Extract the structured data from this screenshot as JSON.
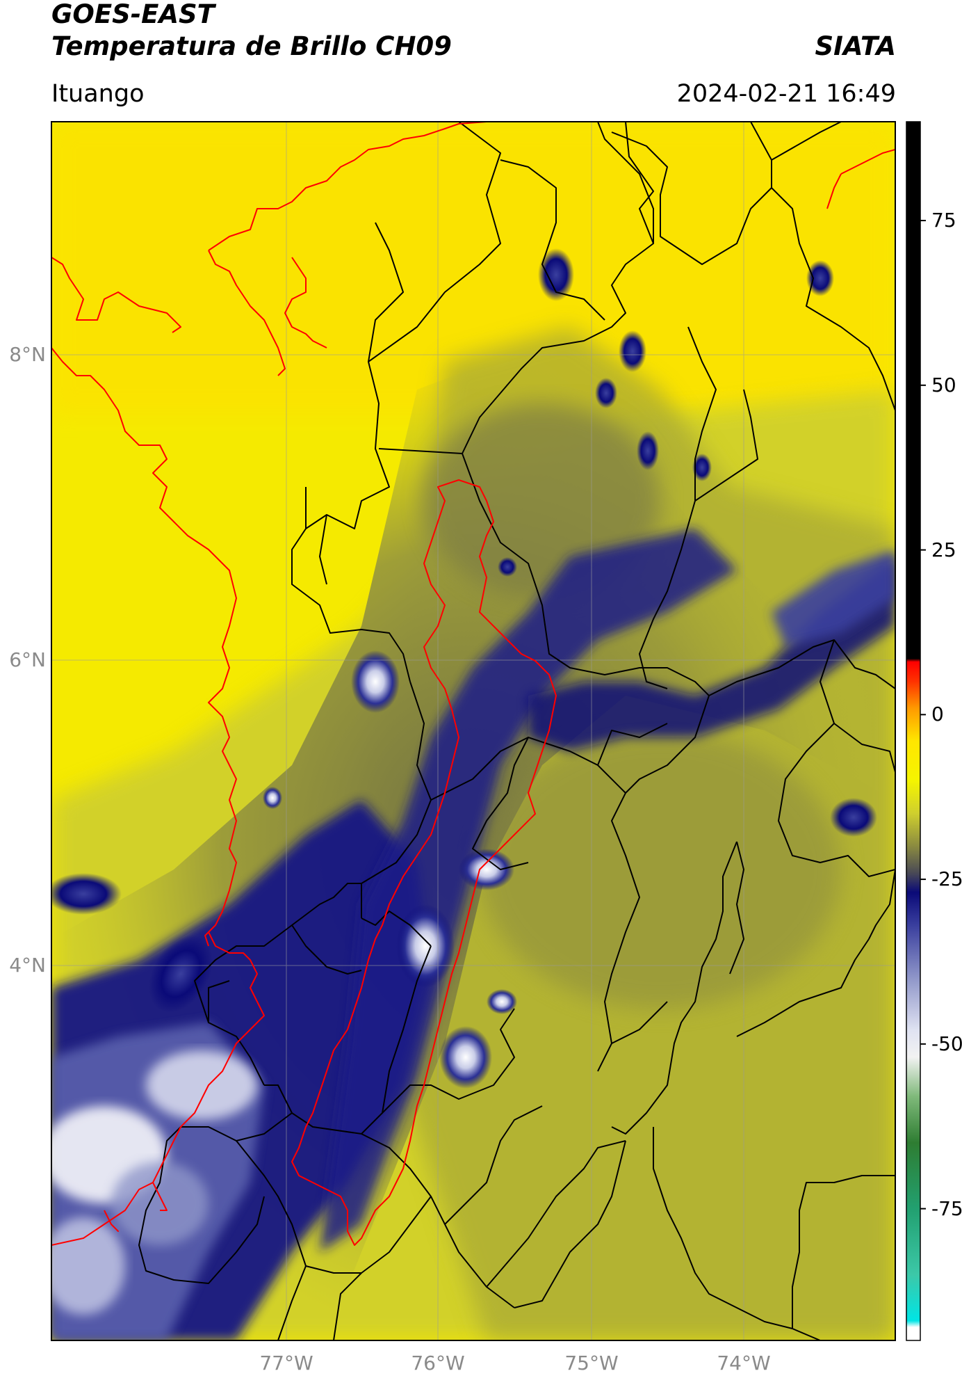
{
  "header": {
    "title_line1": "GOES-EAST",
    "title_line2": "Temperatura de Brillo CH09",
    "brand": "SIATA",
    "region": "Ituango",
    "datetime": "2024-02-21 16:49"
  },
  "map": {
    "lat_ticks": [
      "8°N",
      "6°N",
      "4°N"
    ],
    "lon_ticks": [
      "77°W",
      "76°W",
      "75°W",
      "74°W"
    ]
  },
  "colorbar": {
    "tick_labels": [
      "75",
      "50",
      "25",
      "0",
      "-25",
      "-50",
      "-75"
    ],
    "tick_values": [
      75,
      50,
      25,
      0,
      -25,
      -50,
      -75
    ],
    "range": [
      -95,
      90
    ],
    "stops": [
      {
        "v": -95,
        "c": "#ffffff"
      },
      {
        "v": -93,
        "c": "#ffffff"
      },
      {
        "v": -92,
        "c": "#00e5e5"
      },
      {
        "v": -85,
        "c": "#3cc8a8"
      },
      {
        "v": -75,
        "c": "#22a070"
      },
      {
        "v": -65,
        "c": "#2e7d32"
      },
      {
        "v": -58,
        "c": "#7fb97a"
      },
      {
        "v": -52,
        "c": "#f2f2f2"
      },
      {
        "v": -48,
        "c": "#e0e3f2"
      },
      {
        "v": -40,
        "c": "#8f96c9"
      },
      {
        "v": -32,
        "c": "#3a3f9e"
      },
      {
        "v": -27,
        "c": "#0a0a78"
      },
      {
        "v": -24,
        "c": "#4a4a55"
      },
      {
        "v": -20,
        "c": "#8a8a40"
      },
      {
        "v": -15,
        "c": "#cfcf2e"
      },
      {
        "v": -10,
        "c": "#f5f500"
      },
      {
        "v": -4,
        "c": "#ffe600"
      },
      {
        "v": 1,
        "c": "#ff9900"
      },
      {
        "v": 5,
        "c": "#ff3300"
      },
      {
        "v": 8,
        "c": "#ff0000"
      },
      {
        "v": 8.5,
        "c": "#000000"
      },
      {
        "v": 90,
        "c": "#000000"
      }
    ]
  },
  "colors": {
    "warm_background": "#f5ea00",
    "cold_cloud": "#0a0a78",
    "coldest_cloud": "#ffffff",
    "municipal_boundary": "#000000",
    "coastline_basin": "#ff0000"
  }
}
